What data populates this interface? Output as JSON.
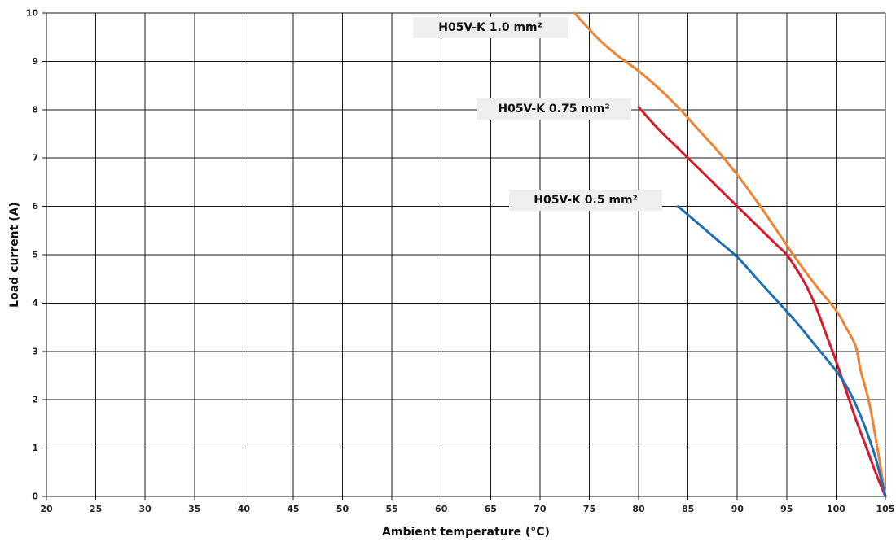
{
  "chart_data": {
    "type": "line",
    "title": "",
    "xlabel": "Ambient temperature (°C)",
    "ylabel": "Load current (A)",
    "xlim": [
      20,
      105
    ],
    "ylim": [
      0,
      10
    ],
    "x_ticks": [
      "20",
      "25",
      "30",
      "35",
      "40",
      "45",
      "50",
      "55",
      "60",
      "65",
      "70",
      "75",
      "80",
      "85",
      "90",
      "95",
      "100",
      "105"
    ],
    "y_ticks": [
      "0",
      "1",
      "2",
      "3",
      "4",
      "5",
      "6",
      "7",
      "8",
      "9",
      "10"
    ],
    "grid": true,
    "series": [
      {
        "name": "H05V-K 1.0 mm²",
        "color": "#ee8433",
        "x": [
          73.5,
          76,
          78,
          80,
          82,
          84,
          86,
          88,
          90,
          92,
          94,
          96,
          98,
          100,
          101,
          102,
          102.5,
          103.5,
          105
        ],
        "y": [
          10,
          9.45,
          9.1,
          8.8,
          8.45,
          8.05,
          7.6,
          7.15,
          6.65,
          6.1,
          5.5,
          4.9,
          4.35,
          3.85,
          3.5,
          3.1,
          2.6,
          1.8,
          0
        ]
      },
      {
        "name": "H05V-K 0.75 mm²",
        "color": "#d7192c",
        "x": [
          80,
          82,
          84,
          86,
          88,
          90,
          92,
          94,
          95,
          96,
          97,
          98,
          99,
          100,
          101,
          102,
          103,
          104,
          105
        ],
        "y": [
          8.05,
          7.6,
          7.2,
          6.8,
          6.4,
          6.0,
          5.6,
          5.2,
          5.0,
          4.7,
          4.35,
          3.9,
          3.35,
          2.8,
          2.2,
          1.6,
          1.05,
          0.5,
          0
        ]
      },
      {
        "name": "H05V-K 0.5 mm²",
        "color": "#1f6fb5",
        "x": [
          84,
          86,
          88,
          90,
          92,
          94,
          96,
          98,
          100,
          101,
          102,
          103,
          104,
          105
        ],
        "y": [
          6.0,
          5.65,
          5.3,
          4.95,
          4.5,
          4.05,
          3.6,
          3.1,
          2.6,
          2.3,
          1.9,
          1.4,
          0.8,
          0
        ]
      }
    ],
    "annotations": [
      "H05V-K 1.0 mm²",
      "H05V-K 0.75 mm²",
      "H05V-K 0.5 mm²"
    ]
  }
}
